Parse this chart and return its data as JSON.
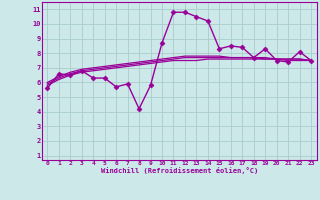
{
  "xlabel": "Windchill (Refroidissement éolien,°C)",
  "bg_color": "#cce8e8",
  "grid_color": "#aacccc",
  "line_color": "#990099",
  "x_ticks": [
    0,
    1,
    2,
    3,
    4,
    5,
    6,
    7,
    8,
    9,
    10,
    11,
    12,
    13,
    14,
    15,
    16,
    17,
    18,
    19,
    20,
    21,
    22,
    23
  ],
  "y_ticks": [
    1,
    2,
    3,
    4,
    5,
    6,
    7,
    8,
    9,
    10,
    11
  ],
  "ylim": [
    0.7,
    11.5
  ],
  "xlim": [
    -0.5,
    23.5
  ],
  "series": [
    {
      "x": [
        0,
        1,
        2,
        3,
        4,
        5,
        6,
        7,
        8,
        9,
        10,
        11,
        12,
        13,
        14,
        15,
        16,
        17,
        18,
        19,
        20,
        21,
        22,
        23
      ],
      "y": [
        5.6,
        6.6,
        6.5,
        6.8,
        6.3,
        6.3,
        5.7,
        5.9,
        4.2,
        5.8,
        8.7,
        10.8,
        10.8,
        10.5,
        10.2,
        8.3,
        8.5,
        8.4,
        7.7,
        8.3,
        7.5,
        7.4,
        8.1,
        7.5
      ],
      "marker": "D",
      "markersize": 2.5,
      "linewidth": 1.0
    },
    {
      "x": [
        0,
        1,
        2,
        3,
        4,
        5,
        6,
        7,
        8,
        9,
        10,
        11,
        12,
        13,
        14,
        15,
        16,
        17,
        18,
        19,
        20,
        21,
        22,
        23
      ],
      "y": [
        5.8,
        6.2,
        6.5,
        6.7,
        6.8,
        6.9,
        7.0,
        7.1,
        7.2,
        7.3,
        7.4,
        7.5,
        7.5,
        7.5,
        7.6,
        7.6,
        7.6,
        7.6,
        7.6,
        7.6,
        7.6,
        7.5,
        7.5,
        7.5
      ],
      "marker": null,
      "linewidth": 0.9
    },
    {
      "x": [
        0,
        1,
        2,
        3,
        4,
        5,
        6,
        7,
        8,
        9,
        10,
        11,
        12,
        13,
        14,
        15,
        16,
        17,
        18,
        19,
        20,
        21,
        22,
        23
      ],
      "y": [
        5.9,
        6.3,
        6.6,
        6.8,
        6.9,
        7.0,
        7.1,
        7.2,
        7.3,
        7.4,
        7.5,
        7.6,
        7.7,
        7.7,
        7.7,
        7.7,
        7.7,
        7.7,
        7.7,
        7.6,
        7.6,
        7.6,
        7.6,
        7.5
      ],
      "marker": null,
      "linewidth": 0.9
    },
    {
      "x": [
        0,
        1,
        2,
        3,
        4,
        5,
        6,
        7,
        8,
        9,
        10,
        11,
        12,
        13,
        14,
        15,
        16,
        17,
        18,
        19,
        20,
        21,
        22,
        23
      ],
      "y": [
        6.0,
        6.4,
        6.7,
        6.9,
        7.0,
        7.1,
        7.2,
        7.3,
        7.4,
        7.5,
        7.6,
        7.7,
        7.8,
        7.8,
        7.8,
        7.8,
        7.7,
        7.7,
        7.7,
        7.7,
        7.6,
        7.6,
        7.6,
        7.5
      ],
      "marker": null,
      "linewidth": 0.9
    }
  ]
}
